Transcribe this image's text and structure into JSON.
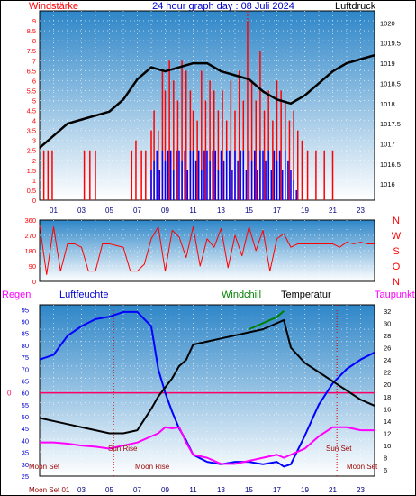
{
  "header": {
    "left_label": "Windstärke",
    "title": "24 hour graph day : 08 Juli 2024",
    "right_label": "Luftdruck"
  },
  "colors": {
    "plot_top": "#2e86c8",
    "plot_bottom": "#ffffff",
    "wind_gust": "#ff0000",
    "wind_avg": "#0000ff",
    "pressure": "#000000",
    "direction": "#ff0000",
    "humidity": "#0000ff",
    "temperature": "#000000",
    "windchill": "#008000",
    "dewpoint": "#ff00ff",
    "zero_line": "#ff0066",
    "left_axis": "#ff0000",
    "right_axis": "#000000"
  },
  "chart_data": [
    {
      "type": "bar",
      "title": "24 hour graph day : 08 Juli 2024",
      "ylabel_left": "Windstärke",
      "ylabel_right": "Luftdruck",
      "x_ticks": [
        "01",
        "03",
        "05",
        "07",
        "09",
        "11",
        "13",
        "15",
        "17",
        "19",
        "21",
        "23"
      ],
      "xlim": [
        0,
        24
      ],
      "ylim_left": [
        0,
        9.5
      ],
      "y_ticks_left": [
        "0",
        "0.5",
        "1",
        "1.5",
        "2",
        "2.5",
        "3",
        "3.5",
        "4",
        "4.5",
        "5",
        "5.5",
        "6",
        "6.5",
        "7",
        "7.5",
        "8",
        "8.5",
        "9"
      ],
      "ylim_right": [
        1015.6,
        1020.3
      ],
      "y_ticks_right": [
        "1016",
        "1016.5",
        "1017",
        "1017.5",
        "1018",
        "1018.5",
        "1019",
        "1019.5",
        "1020"
      ],
      "series": [
        {
          "name": "Windstärke",
          "axis": "left",
          "kind": "gust",
          "x": [
            0.3,
            0.6,
            0.9,
            3.2,
            3.6,
            4.0,
            6.6,
            6.9,
            7.3,
            7.6,
            8.0,
            8.2,
            8.5,
            8.8,
            9.0,
            9.3,
            9.6,
            9.9,
            10.2,
            10.5,
            10.8,
            11.0,
            11.3,
            11.6,
            11.9,
            12.2,
            12.5,
            12.8,
            13.1,
            13.4,
            13.7,
            14.0,
            14.3,
            14.6,
            14.9,
            15.2,
            15.5,
            15.8,
            16.1,
            16.4,
            16.7,
            17.0,
            17.3,
            17.6,
            17.9,
            18.2,
            18.5,
            18.8,
            19.2,
            19.8,
            20.4,
            21.0
          ],
          "values": [
            2.5,
            2.5,
            2.5,
            2.5,
            2.5,
            2.5,
            2.5,
            3.0,
            2.5,
            2.5,
            3.5,
            4.5,
            3.5,
            6.5,
            5.5,
            7.0,
            6.0,
            5.0,
            7.0,
            6.5,
            5.5,
            4.5,
            4.0,
            6.5,
            5.0,
            6.0,
            5.5,
            4.5,
            5.5,
            4.0,
            6.0,
            4.5,
            6.5,
            5.0,
            9.0,
            6.0,
            5.0,
            7.5,
            4.5,
            5.5,
            4.0,
            6.0,
            5.5,
            5.0,
            4.0,
            4.5,
            3.5,
            3.0,
            2.5,
            2.5,
            2.5,
            2.5
          ]
        },
        {
          "name": "Windstärke",
          "axis": "left",
          "kind": "avg",
          "x": [
            8.0,
            8.2,
            8.4,
            8.6,
            8.8,
            9.0,
            9.2,
            9.4,
            9.6,
            9.8,
            10.0,
            10.2,
            10.4,
            10.6,
            10.8,
            11.0,
            11.2,
            11.4,
            11.6,
            11.8,
            12.0,
            12.2,
            12.4,
            12.6,
            12.8,
            13.0,
            13.2,
            13.4,
            13.6,
            13.8,
            14.0,
            14.2,
            14.4,
            14.6,
            14.8,
            15.0,
            15.2,
            15.4,
            15.6,
            15.8,
            16.0,
            16.2,
            16.4,
            16.6,
            16.8,
            17.0,
            17.2,
            17.4,
            17.6,
            17.8,
            18.0,
            18.2,
            18.4
          ],
          "values": [
            1.5,
            2.0,
            2.5,
            1.5,
            2.5,
            2.0,
            2.5,
            2.5,
            1.5,
            2.5,
            2.5,
            2.0,
            2.5,
            1.5,
            2.5,
            2.5,
            2.0,
            2.5,
            1.5,
            2.5,
            2.5,
            2.0,
            2.5,
            2.5,
            1.5,
            2.5,
            2.0,
            2.5,
            2.5,
            1.5,
            2.5,
            2.0,
            2.5,
            2.5,
            1.5,
            2.5,
            2.0,
            2.5,
            1.5,
            2.5,
            2.5,
            2.0,
            2.5,
            1.5,
            2.5,
            2.0,
            2.5,
            1.5,
            2.5,
            2.0,
            1.5,
            1.0,
            0.5
          ]
        },
        {
          "name": "Luftdruck",
          "axis": "right",
          "kind": "line",
          "x": [
            0,
            1,
            2,
            3,
            4,
            5,
            6,
            7,
            8,
            9,
            10,
            11,
            12,
            13,
            14,
            15,
            16,
            17,
            18,
            19,
            20,
            21,
            22,
            23,
            24
          ],
          "values": [
            1016.9,
            1017.2,
            1017.5,
            1017.6,
            1017.7,
            1017.8,
            1018.1,
            1018.6,
            1018.9,
            1018.8,
            1018.9,
            1019.0,
            1019.0,
            1018.8,
            1018.7,
            1018.6,
            1018.3,
            1018.1,
            1018.0,
            1018.2,
            1018.5,
            1018.8,
            1019.0,
            1019.1,
            1019.2
          ]
        }
      ]
    },
    {
      "type": "line",
      "title": "",
      "ylabel_left": "",
      "x_ticks": [
        "01",
        "03",
        "05",
        "07",
        "09",
        "11",
        "13",
        "15",
        "17",
        "19",
        "21",
        "23"
      ],
      "xlim": [
        0,
        24
      ],
      "ylim": [
        0,
        360
      ],
      "y_ticks_left": [
        "0",
        "90",
        "180",
        "270",
        "360"
      ],
      "right_labels": [
        "N",
        "W",
        "S",
        "O",
        "N"
      ],
      "series": [
        {
          "name": "Windrichtung",
          "x": [
            0,
            0.5,
            1,
            1.5,
            2,
            2.5,
            3,
            3.5,
            4,
            4.5,
            5,
            5.5,
            6,
            6.5,
            7,
            7.5,
            8,
            8.5,
            9,
            9.5,
            10,
            10.5,
            11,
            11.5,
            12,
            12.5,
            13,
            13.5,
            14,
            14.5,
            15,
            15.5,
            16,
            16.5,
            17,
            17.5,
            18,
            18.5,
            19,
            19.5,
            20,
            20.5,
            21,
            21.5,
            22,
            22.5,
            23,
            23.5,
            24
          ],
          "values": [
            330,
            40,
            320,
            60,
            220,
            220,
            200,
            60,
            60,
            220,
            220,
            210,
            200,
            60,
            60,
            100,
            250,
            320,
            60,
            300,
            260,
            140,
            320,
            90,
            250,
            200,
            310,
            80,
            270,
            150,
            320,
            180,
            300,
            60,
            250,
            280,
            200,
            220,
            220,
            220,
            220,
            220,
            220,
            200,
            230,
            220,
            230,
            220,
            220
          ]
        }
      ]
    },
    {
      "type": "line",
      "title": "",
      "header_labels": [
        "Regen",
        "Luftfeuchte",
        "Windchill",
        "Temperatur",
        "Taupunkt"
      ],
      "x_ticks": [
        "01",
        "03",
        "05",
        "07",
        "09",
        "11",
        "13",
        "15",
        "17",
        "19",
        "21",
        "23"
      ],
      "xlim": [
        0,
        24
      ],
      "ylim_left": [
        25,
        97
      ],
      "y_ticks_left": [
        "25",
        "30",
        "35",
        "40",
        "45",
        "50",
        "55",
        "60",
        "65",
        "70",
        "75",
        "80",
        "85",
        "90",
        "95"
      ],
      "ylim_right": [
        5,
        33
      ],
      "y_ticks_right": [
        "6",
        "8",
        "10",
        "12",
        "14",
        "16",
        "18",
        "20",
        "22",
        "24",
        "26",
        "28",
        "30",
        "32"
      ],
      "rain_zero_label": "0",
      "annotations": [
        "Moon Set",
        "Sun Rise",
        "Moon Rise",
        "Sun Set",
        "Moon Set",
        "Moon Set 01"
      ],
      "series": [
        {
          "name": "Luftfeuchte",
          "axis": "left",
          "x": [
            0,
            1,
            2,
            3,
            4,
            5,
            6,
            7,
            8,
            8.5,
            9,
            9.5,
            10,
            10.5,
            11,
            12,
            13,
            14,
            15,
            16,
            17,
            17.5,
            18,
            19,
            20,
            21,
            22,
            23,
            24
          ],
          "values": [
            74,
            76,
            84,
            88,
            91,
            92,
            94,
            94,
            88,
            70,
            60,
            52,
            45,
            40,
            34,
            31,
            30,
            31,
            31,
            30,
            31,
            29,
            30,
            42,
            55,
            64,
            70,
            74,
            77
          ]
        },
        {
          "name": "Temperatur",
          "axis": "right",
          "x": [
            0,
            1,
            2,
            3,
            4,
            5,
            6,
            7,
            8,
            8.5,
            9,
            9.5,
            10,
            10.5,
            11,
            12,
            13,
            14,
            15,
            16,
            17,
            17.5,
            18,
            19,
            20,
            21,
            22,
            23,
            24
          ],
          "values": [
            14.5,
            14.0,
            13.5,
            13.0,
            12.5,
            12.0,
            12.0,
            12.5,
            16.0,
            18.0,
            19.5,
            21.0,
            23.0,
            24.0,
            26.5,
            27.0,
            27.5,
            28.0,
            28.5,
            29.0,
            30.0,
            30.5,
            26.0,
            23.5,
            22.0,
            20.5,
            19.0,
            17.5,
            16.5
          ]
        },
        {
          "name": "Windchill",
          "axis": "right",
          "x": [
            15,
            15.5,
            16,
            16.5,
            17,
            17.5
          ],
          "values": [
            29.0,
            29.5,
            30.0,
            30.5,
            31.0,
            32.0
          ]
        },
        {
          "name": "Taupunkt",
          "axis": "right",
          "x": [
            0,
            1,
            2,
            3,
            4,
            5,
            6,
            7,
            8,
            8.5,
            9,
            9.5,
            10,
            10.5,
            11,
            12,
            13,
            14,
            15,
            16,
            17,
            17.5,
            18,
            19,
            20,
            21,
            22,
            23,
            24
          ],
          "values": [
            10.5,
            10.5,
            10.3,
            10.0,
            9.8,
            9.5,
            10.0,
            10.5,
            11.5,
            12.0,
            13.0,
            12.8,
            13.0,
            10.5,
            8.5,
            8.0,
            7.0,
            7.0,
            7.5,
            8.0,
            8.5,
            8.0,
            8.5,
            9.5,
            11.5,
            13.0,
            13.0,
            12.5,
            12.5
          ]
        }
      ]
    }
  ]
}
